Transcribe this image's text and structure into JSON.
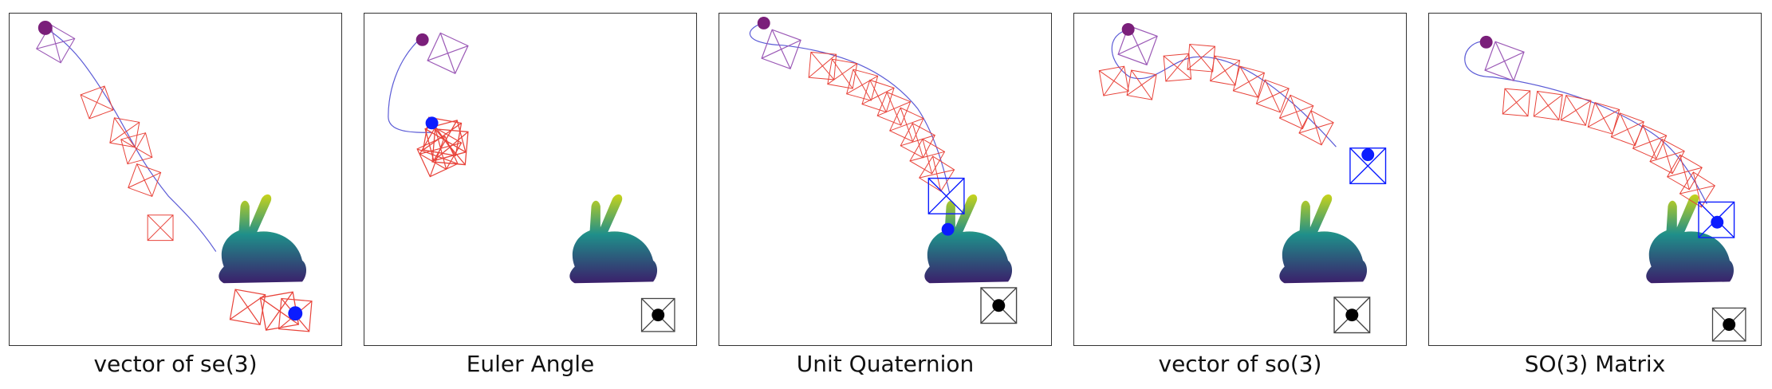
{
  "panels": [
    {
      "caption": "vector of se(3)"
    },
    {
      "caption": "Euler Angle"
    },
    {
      "caption": "Unit Quaternion"
    },
    {
      "caption": "vector of so(3)"
    },
    {
      "caption": "SO(3) Matrix"
    }
  ],
  "colors": {
    "start_marker": "#7a1f7a",
    "end_marker": "#0b1cff",
    "target_marker": "#000000",
    "frame_red": "#e8433a",
    "frame_purple": "#9b59b6",
    "path_blue": "#5b5bd6",
    "bunny_top": "#c7d31a",
    "bunny_mid": "#1f8f8a",
    "bunny_bottom": "#3b1f6b"
  },
  "icons": [
    "start-point-icon",
    "end-point-icon",
    "target-point-icon",
    "bunny-mesh-icon"
  ]
}
